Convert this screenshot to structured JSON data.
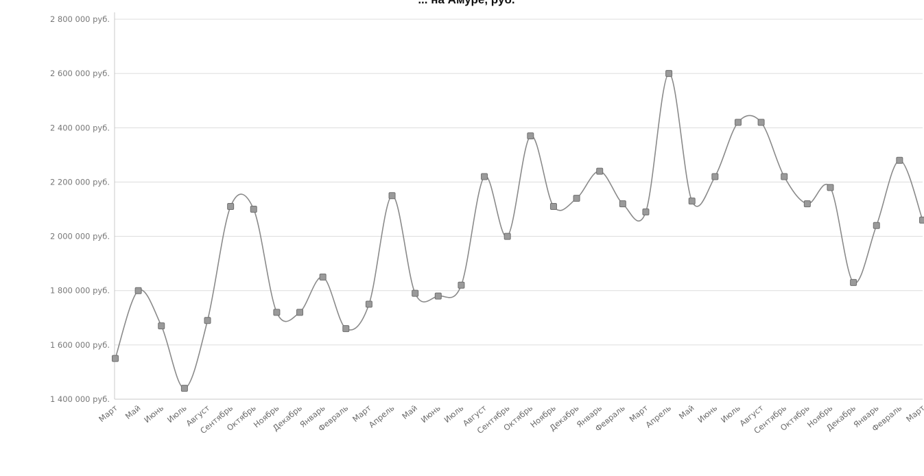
{
  "chart_data": {
    "type": "line",
    "title": "... на Амуре, руб.",
    "xlabel": "",
    "ylabel": "",
    "ylim": [
      1400000,
      2800000
    ],
    "y_ticks": [
      "1 400 000 руб.",
      "1 600 000 руб.",
      "1 800 000 руб.",
      "2 000 000 руб.",
      "2 200 000 руб.",
      "2 400 000 руб.",
      "2 600 000 руб.",
      "2 800 000 руб."
    ],
    "y_tick_values": [
      1400000,
      1600000,
      1800000,
      2000000,
      2200000,
      2400000,
      2600000,
      2800000
    ],
    "grid": true,
    "legend": "none",
    "categories": [
      "Март",
      "Май",
      "Июнь",
      "Июль",
      "Август",
      "Сентябрь",
      "Октябрь",
      "Ноябрь",
      "Декабрь",
      "Январь",
      "Февраль",
      "Март",
      "Апрель",
      "Май",
      "Июнь",
      "Июль",
      "Август",
      "Сентябрь",
      "Октябрь",
      "Ноябрь",
      "Декабрь",
      "Январь",
      "Февраль",
      "Март",
      "Апрель",
      "Май",
      "Июнь",
      "Июль",
      "Август",
      "Сентябрь",
      "Октябрь",
      "Ноябрь",
      "Декабрь",
      "Январь",
      "Февраль",
      "Март"
    ],
    "values": [
      1550000,
      1800000,
      1670000,
      1440000,
      1690000,
      2110000,
      2100000,
      1720000,
      1720000,
      1850000,
      1660000,
      1750000,
      2150000,
      1790000,
      1780000,
      1820000,
      2220000,
      2000000,
      2370000,
      2110000,
      2140000,
      2240000,
      2120000,
      2090000,
      2600000,
      2130000,
      2220000,
      2420000,
      2420000,
      2220000,
      2120000,
      2180000,
      1830000,
      2040000,
      2280000,
      2060000
    ]
  }
}
